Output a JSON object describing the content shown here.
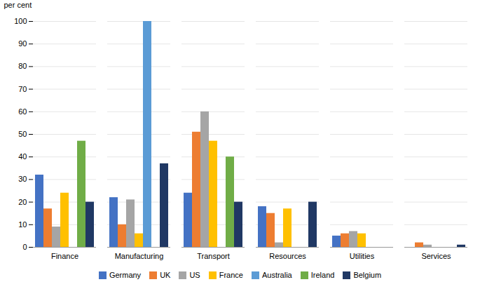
{
  "chart_data": {
    "type": "bar",
    "categories": [
      "Finance",
      "Manufacturing",
      "Transport",
      "Resources",
      "Utilities",
      "Services"
    ],
    "series": [
      {
        "name": "Germany",
        "color": "#4472C4",
        "values": [
          32,
          22,
          24,
          18,
          5,
          0
        ]
      },
      {
        "name": "UK",
        "color": "#ED7D31",
        "values": [
          17,
          10,
          51,
          15,
          6,
          2
        ]
      },
      {
        "name": "US",
        "color": "#A5A5A5",
        "values": [
          9,
          21,
          60,
          2,
          7,
          1
        ]
      },
      {
        "name": "France",
        "color": "#FFC000",
        "values": [
          24,
          6,
          47,
          17,
          6,
          0
        ]
      },
      {
        "name": "Australia",
        "color": "#5B9BD5",
        "values": [
          0,
          100,
          0,
          0,
          0,
          0
        ]
      },
      {
        "name": "Ireland",
        "color": "#70AD47",
        "values": [
          47,
          0,
          40,
          0,
          0,
          0
        ]
      },
      {
        "name": "Belgium",
        "color": "#203864",
        "values": [
          20,
          37,
          20,
          20,
          0,
          1
        ]
      }
    ],
    "ylabel": "per cent",
    "ylim": [
      0,
      100
    ],
    "yticks": [
      0,
      10,
      20,
      30,
      40,
      50,
      60,
      70,
      80,
      90,
      100
    ],
    "grid": true,
    "legend": "bottom"
  }
}
